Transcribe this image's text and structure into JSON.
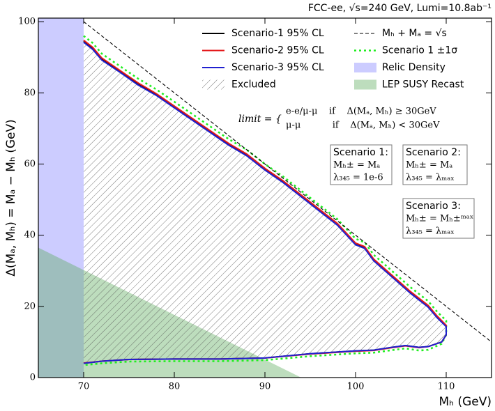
{
  "chart_data": {
    "type": "line",
    "title": "FCC-ee, √s=240 GeV, Lumi=10.8ab⁻¹",
    "xlabel": "Mₕ (GeV)",
    "ylabel": "Δ(Mₐ, Mₕ) = Mₐ − Mₕ (GeV)",
    "xlim": [
      65,
      115
    ],
    "ylim": [
      0,
      101
    ],
    "xticks": [
      70,
      80,
      90,
      100,
      110
    ],
    "yticks": [
      0,
      20,
      40,
      60,
      80,
      100
    ],
    "regions": [
      {
        "name": "Relic Density",
        "color": "#8080ff",
        "x": [
          65,
          70
        ]
      },
      {
        "name": "LEP SUSY Recast",
        "color": "#5aaa5a",
        "x": [
          65,
          94,
          65
        ],
        "values": [
          36.5,
          0,
          0
        ]
      }
    ],
    "excluded": {
      "name": "Excluded"
    },
    "series": [
      {
        "name": "Scenario-1 95% CL",
        "color": "#000000",
        "style": "solid",
        "x": [
          70,
          71,
          72,
          74,
          76,
          78,
          80,
          82,
          84,
          86,
          88,
          90,
          92,
          94,
          96,
          98,
          100,
          101,
          102,
          104,
          106,
          108,
          109,
          110,
          110,
          109.5,
          108,
          107,
          105.5,
          104,
          102,
          100,
          95,
          90,
          85,
          80,
          75,
          72,
          70
        ],
        "values": [
          94.5,
          92.5,
          89.5,
          86,
          82.5,
          79.5,
          76,
          72.5,
          69,
          65.5,
          62.5,
          58.5,
          55,
          51,
          47,
          43,
          37.5,
          36.5,
          33,
          28.5,
          24,
          20,
          17,
          14.5,
          12,
          10,
          8.7,
          8.5,
          9,
          8.5,
          7.7,
          7.5,
          6.7,
          5.5,
          5.2,
          5.2,
          5.1,
          4.6,
          4
        ]
      },
      {
        "name": "Scenario-2 95% CL",
        "color": "#e41a1c",
        "style": "solid",
        "x": [
          70,
          71,
          72,
          74,
          76,
          78,
          80,
          82,
          84,
          86,
          88,
          90,
          92,
          94,
          96,
          98,
          100,
          101,
          102,
          104,
          106,
          108,
          109,
          110,
          110,
          109.5,
          108,
          107,
          105.5,
          104,
          102,
          100,
          95,
          90,
          85,
          80,
          75,
          72,
          70
        ],
        "values": [
          94.8,
          92.8,
          89.8,
          86.3,
          82.8,
          79.8,
          76.3,
          72.8,
          69.3,
          65.8,
          62.8,
          58.8,
          55.3,
          51.3,
          47.3,
          43.3,
          37.8,
          36.8,
          33.3,
          28.8,
          24.3,
          20.3,
          17.3,
          14.7,
          12,
          10,
          8.7,
          8.4,
          8.9,
          8.4,
          7.6,
          7.4,
          6.6,
          5.5,
          5.2,
          5.2,
          5.1,
          4.6,
          4.1
        ]
      },
      {
        "name": "Scenario-3 95% CL",
        "color": "#2020d0",
        "style": "solid",
        "x": [
          70,
          71,
          72,
          74,
          76,
          78,
          80,
          82,
          84,
          86,
          88,
          90,
          92,
          94,
          96,
          98,
          100,
          101,
          102,
          104,
          106,
          108,
          109,
          110,
          110,
          109.5,
          108,
          107,
          105.5,
          104,
          102,
          100,
          95,
          90,
          85,
          80,
          75,
          72,
          70
        ],
        "values": [
          94.2,
          92.2,
          89.2,
          85.8,
          82.2,
          79.3,
          75.8,
          72.3,
          68.8,
          65.3,
          62.3,
          58.3,
          54.8,
          50.8,
          46.8,
          42.8,
          37.3,
          36.3,
          32.8,
          28.3,
          23.8,
          19.8,
          16.8,
          14.3,
          12,
          10,
          8.7,
          8.5,
          9,
          8.5,
          7.7,
          7.5,
          6.7,
          5.5,
          5.2,
          5.2,
          5.1,
          4.6,
          4
        ]
      },
      {
        "name": "Mₕ + Mₐ = √s",
        "color": "#000000",
        "style": "dashed",
        "x": [
          70,
          115
        ],
        "values": [
          100,
          10
        ]
      },
      {
        "name": "Scenario 1 ±1σ",
        "color": "#22ee22",
        "style": "dotted",
        "x": [
          70,
          71,
          72,
          74,
          76,
          78,
          80,
          82,
          84,
          86,
          88,
          90,
          92,
          94,
          96,
          98,
          100,
          101,
          102,
          104,
          106,
          108,
          109,
          110,
          110,
          109.5,
          108,
          107,
          105.5,
          104,
          102,
          100,
          95,
          90,
          85,
          80,
          75,
          72,
          70
        ],
        "values": [
          96,
          94,
          91,
          87.5,
          84,
          81,
          77.5,
          74,
          70.5,
          67,
          64,
          60,
          56.5,
          52.5,
          48.5,
          44.5,
          39,
          38,
          34.5,
          30,
          25.5,
          21.5,
          18.5,
          16,
          12,
          9.5,
          7.8,
          7.6,
          8.2,
          7.7,
          7,
          6.8,
          6,
          4.9,
          4.6,
          4.6,
          4.5,
          4,
          3.5
        ]
      }
    ],
    "annotations": {
      "limit": [
        "limit = {",
        "e-e/μ-μ    if    Δ(Mₐ, Mₕ) ≥ 30GeV",
        "μ-μ           if    Δ(Mₐ, Mₕ) < 30GeV"
      ],
      "boxes": [
        [
          "Scenario 1:",
          "Mₕ± = Mₐ",
          "λ₃₄₅ = 1e-6"
        ],
        [
          "Scenario 2:",
          "Mₕ± = Mₐ",
          "λ₃₄₅ = λₘₐₓ"
        ],
        [
          "Scenario 3:",
          "Mₕ± = Mₕ±ᵐᵃˣ",
          "λ₃₄₅ = λₘₐₓ"
        ]
      ]
    }
  }
}
